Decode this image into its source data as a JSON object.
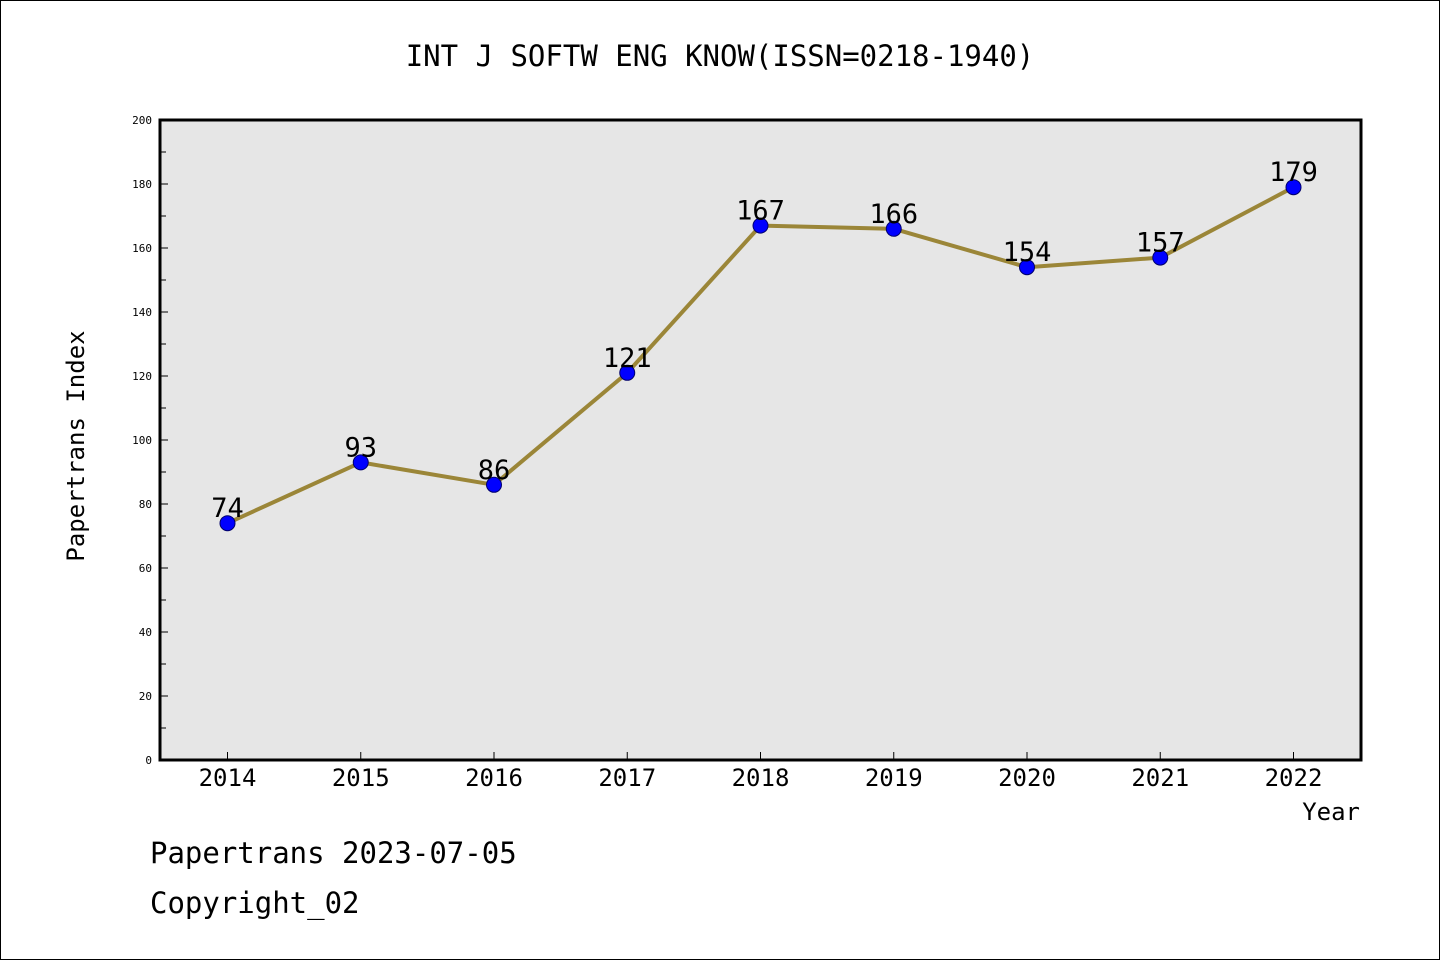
{
  "chart_data": {
    "type": "line",
    "title": "INT J SOFTW ENG KNOW(ISSN=0218-1940)",
    "xlabel": "Year",
    "ylabel": "Papertrans Index",
    "categories": [
      "2014",
      "2015",
      "2016",
      "2017",
      "2018",
      "2019",
      "2020",
      "2021",
      "2022"
    ],
    "values": [
      74,
      93,
      86,
      121,
      167,
      166,
      154,
      157,
      179
    ],
    "ylim": [
      0,
      200
    ],
    "yticks": [
      0,
      20,
      40,
      60,
      80,
      100,
      120,
      140,
      160,
      180,
      200
    ],
    "grid": false,
    "data_labels": true,
    "colors": {
      "plot_background": "#e6e6e6",
      "line": "#9b8638",
      "marker": "#0000ff",
      "marker_edge": "#00006b"
    }
  },
  "footer": {
    "line1": "Papertrans 2023-07-05",
    "line2": "Copyright_02"
  }
}
